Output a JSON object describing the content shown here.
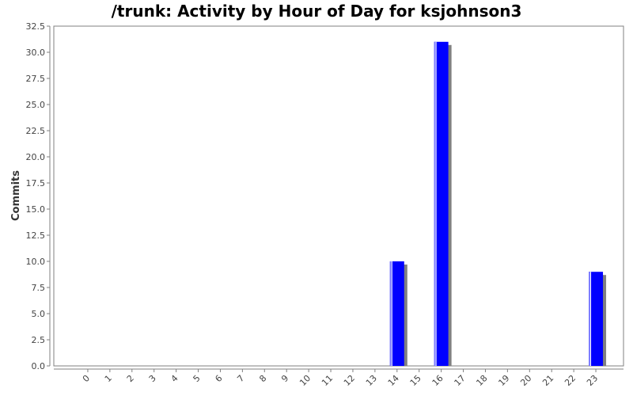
{
  "chart_data": {
    "type": "bar",
    "title": "/trunk: Activity by Hour of Day for ksjohnson3",
    "xlabel": "",
    "ylabel": "Commits",
    "categories": [
      "0",
      "1",
      "2",
      "3",
      "4",
      "5",
      "6",
      "7",
      "8",
      "9",
      "10",
      "11",
      "12",
      "13",
      "14",
      "15",
      "16",
      "17",
      "18",
      "19",
      "20",
      "21",
      "22",
      "23"
    ],
    "values": [
      0,
      0,
      0,
      0,
      0,
      0,
      0,
      0,
      0,
      0,
      0,
      0,
      0,
      0,
      10,
      0,
      31,
      0,
      0,
      0,
      0,
      0,
      0,
      9
    ],
    "ylim": [
      0,
      32.5
    ],
    "yticks": [
      "0.0",
      "2.5",
      "5.0",
      "7.5",
      "10.0",
      "12.5",
      "15.0",
      "17.5",
      "20.0",
      "22.5",
      "25.0",
      "27.5",
      "30.0",
      "32.5"
    ],
    "grid": false,
    "colors": {
      "bar": "#0000ff",
      "bar_highlight": "#8080ff",
      "shadow": "#808080",
      "axis": "#808080"
    }
  }
}
